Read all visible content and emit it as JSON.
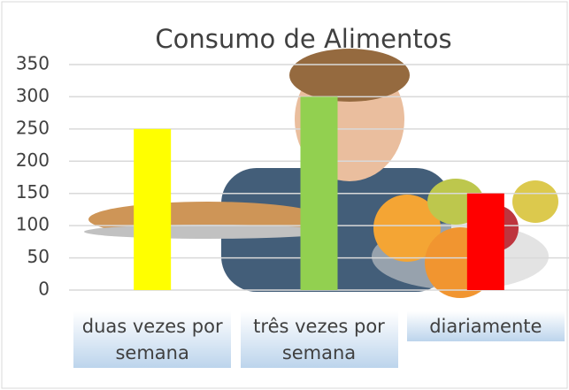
{
  "chart_data": {
    "type": "bar",
    "title": "Consumo de Alimentos",
    "categories": [
      "duas vezes por semana",
      "três vezes por semana",
      "diariamente"
    ],
    "values": [
      250,
      300,
      150
    ],
    "colors": [
      "#ffff00",
      "#92d050",
      "#ff0000"
    ],
    "ylim": [
      0,
      350
    ],
    "yticks": [
      0,
      50,
      100,
      150,
      200,
      250,
      300,
      350
    ],
    "grid": true
  }
}
